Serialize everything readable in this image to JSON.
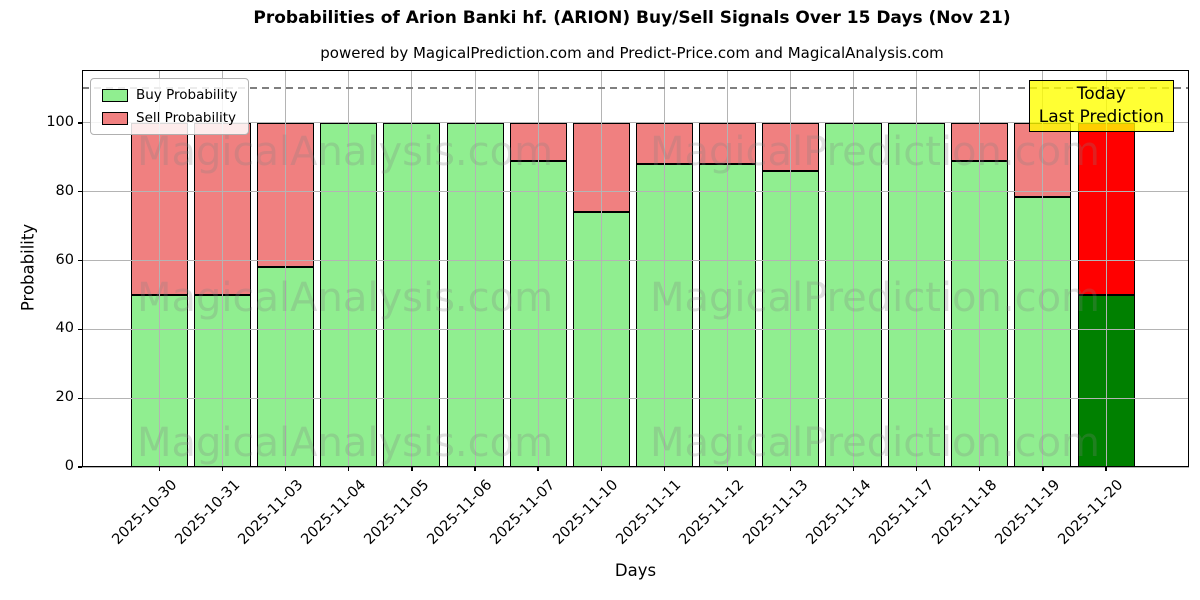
{
  "chart_data": {
    "type": "bar",
    "stacked": true,
    "title": "Probabilities of Arion Banki hf. (ARION) Buy/Sell Signals Over 15 Days (Nov 21)",
    "subtitle": "powered by MagicalPrediction.com and Predict-Price.com and MagicalAnalysis.com",
    "xlabel": "Days",
    "ylabel": "Probability",
    "categories": [
      "2025-10-30",
      "2025-10-31",
      "2025-11-03",
      "2025-11-04",
      "2025-11-05",
      "2025-11-06",
      "2025-11-07",
      "2025-11-10",
      "2025-11-11",
      "2025-11-12",
      "2025-11-13",
      "2025-11-14",
      "2025-11-17",
      "2025-11-18",
      "2025-11-19",
      "2025-11-20"
    ],
    "series": [
      {
        "name": "Buy Probability",
        "color": "#90EE90",
        "values": [
          50,
          50,
          58,
          100,
          100,
          100,
          89,
          74,
          88,
          88,
          86,
          100,
          100,
          89,
          78.5,
          50
        ]
      },
      {
        "name": "Sell Probability",
        "color": "#F08080",
        "values": [
          50,
          50,
          42,
          0,
          0,
          0,
          11,
          26,
          12,
          12,
          14,
          0,
          0,
          11,
          21.5,
          50
        ]
      }
    ],
    "today_index": 15,
    "today_colors": {
      "buy": "#008000",
      "sell": "#FF0000"
    },
    "yticks": [
      0,
      20,
      40,
      60,
      80,
      100
    ],
    "ylim": [
      0,
      115
    ],
    "dashed_line_y": 110,
    "grid": true,
    "legend_position": "upper left"
  },
  "annotation": {
    "line1": "Today",
    "line2": "Last Prediction",
    "bg_color": "#FFFF00"
  },
  "watermarks": {
    "left": "MagicalAnalysis.com",
    "right": "MagicalPrediction.com"
  }
}
